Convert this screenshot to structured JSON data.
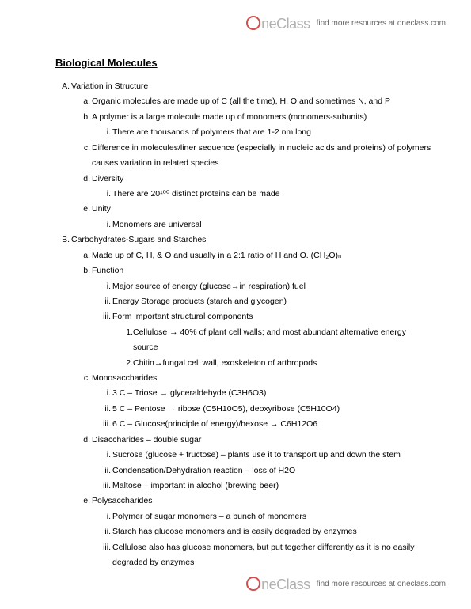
{
  "brand": {
    "name": "neClass",
    "tagline": "find more resources at oneclass.com"
  },
  "title": "Biological Molecules",
  "A": {
    "m": "A.",
    "t": "Variation in Structure",
    "a": {
      "m": "a.",
      "t": "Organic molecules are made up of C (all the time), H, O and sometimes N, and P"
    },
    "b": {
      "m": "b.",
      "t": "A polymer is a large molecule made up of monomers (monomers-subunits)",
      "i": {
        "m": "i.",
        "t": "There are thousands of polymers that are 1-2 nm long"
      }
    },
    "c": {
      "m": "c.",
      "t": "Difference in molecules/liner sequence (especially in nucleic acids and proteins) of polymers causes variation in related species"
    },
    "d": {
      "m": "d.",
      "t": "Diversity",
      "i": {
        "m": "i.",
        "t": "There are 20¹⁰⁰ distinct proteins can be made"
      }
    },
    "e": {
      "m": "e.",
      "t": "Unity",
      "i": {
        "m": "i.",
        "t": "Monomers are universal"
      }
    }
  },
  "B": {
    "m": "B.",
    "t": "Carbohydrates-Sugars and Starches",
    "a": {
      "m": "a.",
      "t": "Made up of C, H, & O  and usually in a 2:1 ratio of H and O. (CH₂O)ₙ"
    },
    "b": {
      "m": "b.",
      "t": "Function",
      "i": {
        "m": "i.",
        "t": "Major source of energy (glucose→in respiration) fuel"
      },
      "ii": {
        "m": "ii.",
        "t": "Energy Storage products (starch and glycogen)"
      },
      "iii": {
        "m": "iii.",
        "t": "Form important structural components",
        "n1": {
          "m": "1.",
          "t": "Cellulose → 40% of plant cell walls; and most abundant alternative energy source"
        },
        "n2": {
          "m": "2.",
          "t": "Chitin→fungal cell wall, exoskeleton of arthropods"
        }
      }
    },
    "c": {
      "m": "c.",
      "t": "Monosaccharides",
      "i": {
        "m": "i.",
        "t": "3 C – Triose → glyceraldehyde (C3H6O3)"
      },
      "ii": {
        "m": "ii.",
        "t": "5 C – Pentose → ribose (C5H10O5), deoxyribose (C5H10O4)"
      },
      "iii": {
        "m": "iii.",
        "t": "6 C – Glucose(principle of energy)/hexose → C6H12O6"
      }
    },
    "d": {
      "m": "d.",
      "t": "Disaccharides – double sugar",
      "i": {
        "m": "i.",
        "t": "Sucrose (glucose + fructose) – plants use it to transport up and down the stem"
      },
      "ii": {
        "m": "ii.",
        "t": "Condensation/Dehydration reaction – loss of H2O"
      },
      "iii": {
        "m": "iii.",
        "t": "Maltose – important in alcohol (brewing beer)"
      }
    },
    "e": {
      "m": "e.",
      "t": "Polysaccharides",
      "i": {
        "m": "i.",
        "t": "Polymer of sugar monomers – a bunch of monomers"
      },
      "ii": {
        "m": "ii.",
        "t": "Starch has glucose monomers and is easily degraded by enzymes"
      },
      "iii": {
        "m": "iii.",
        "t": "Cellulose also has glucose monomers, but put together differently as it is no easily degraded by enzymes"
      }
    }
  }
}
